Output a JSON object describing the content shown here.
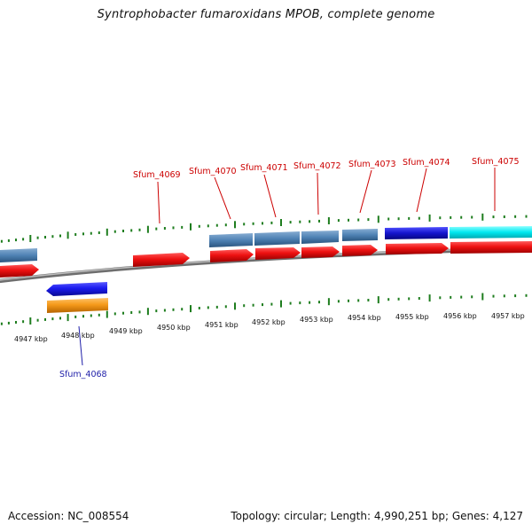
{
  "title": "Syntrophobacter fumaroxidans MPOB, complete genome",
  "footer": {
    "accession_label": "Accession:",
    "accession": "NC_008554",
    "topology_label": "Topology:",
    "topology": "circular",
    "length_label": "Length:",
    "length": "4,990,251 bp",
    "genes_label": "Genes:",
    "genes": "4,127"
  },
  "colors": {
    "forward_cds": "#ee1111",
    "reverse_cds_blue": "#1a1aee",
    "reverse_cds_orange": "#f59a1a",
    "cog_steel": "#4f82b4",
    "cog_navy": "#1414cc",
    "cog_cyan": "#00e8f0",
    "ticks": "#1e7d1e",
    "backbone": "#8a8a8a",
    "forward_label": "#cc0000",
    "reverse_label": "#1e1ea8"
  },
  "scale": {
    "unit": "kbp",
    "labels": [
      "4947 kbp",
      "4948 kbp",
      "4949 kbp",
      "4950 kbp",
      "4951 kbp",
      "4952 kbp",
      "4953 kbp",
      "4954 kbp",
      "4955 kbp",
      "4956 kbp",
      "4957 kbp"
    ]
  },
  "genes": [
    {
      "locus_tag": "Sfum_4068",
      "strand": "reverse"
    },
    {
      "locus_tag": "Sfum_4069",
      "strand": "forward"
    },
    {
      "locus_tag": "Sfum_4070",
      "strand": "forward"
    },
    {
      "locus_tag": "Sfum_4071",
      "strand": "forward"
    },
    {
      "locus_tag": "Sfum_4072",
      "strand": "forward"
    },
    {
      "locus_tag": "Sfum_4073",
      "strand": "forward"
    },
    {
      "locus_tag": "Sfum_4074",
      "strand": "forward"
    },
    {
      "locus_tag": "Sfum_4075",
      "strand": "forward"
    }
  ]
}
